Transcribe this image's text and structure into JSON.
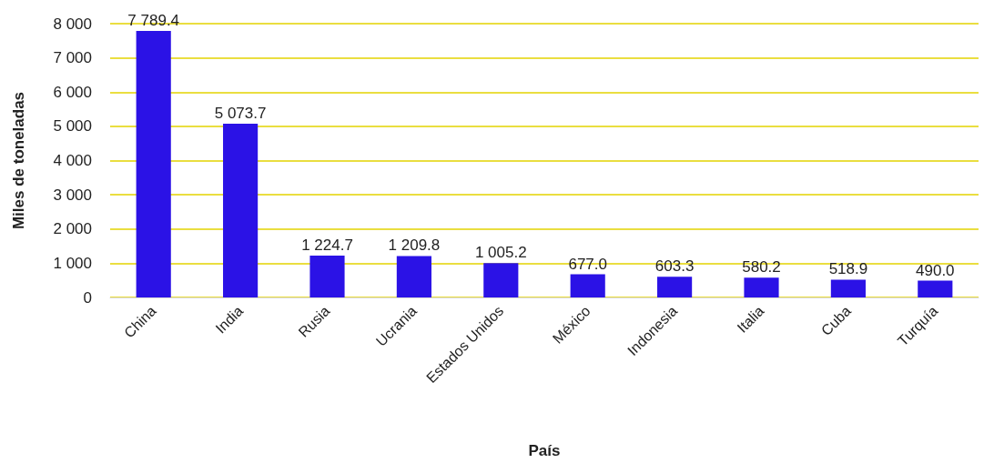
{
  "chart_data": {
    "type": "bar",
    "xlabel": "País",
    "ylabel": "Miles de toneladas",
    "categories": [
      "China",
      "India",
      "Rusia",
      "Ucrania",
      "Estados Unidos",
      "México",
      "Indonesia",
      "Italia",
      "Cuba",
      "Turquía"
    ],
    "values": [
      7789.4,
      5073.7,
      1224.7,
      1209.8,
      1005.2,
      677.0,
      603.3,
      580.2,
      518.9,
      490.0
    ],
    "value_labels": [
      "7 789.4",
      "5 073.7",
      "1 224.7",
      "1 209.8",
      "1 005.2",
      "677.0",
      "603.3",
      "580.2",
      "518.9",
      "490.0"
    ],
    "color": "#2b12e6",
    "ylim": [
      0,
      8000
    ],
    "yticks": [
      0,
      {
        "value": 1000,
        "label": "1 000"
      },
      {
        "value": 2000,
        "label": "2 000"
      },
      {
        "value": 3000,
        "label": "3 000"
      },
      {
        "value": 4000,
        "label": "4 000"
      },
      {
        "value": 5000,
        "label": "5 000"
      },
      {
        "value": 6000,
        "label": "6 000"
      },
      {
        "value": 7000,
        "label": "7 000"
      },
      {
        "value": 8000,
        "label": "8 000"
      }
    ],
    "grid": "y"
  }
}
